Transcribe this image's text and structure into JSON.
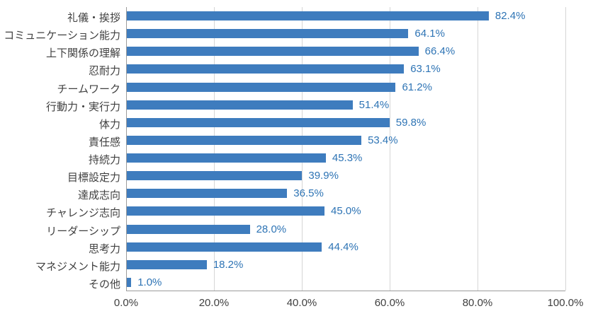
{
  "chart_data": {
    "type": "bar",
    "orientation": "horizontal",
    "title": "",
    "xlabel": "",
    "ylabel": "",
    "categories": [
      "礼儀・挨拶",
      "コミュニケーション能力",
      "上下関係の理解",
      "忍耐力",
      "チームワーク",
      "行動力・実行力",
      "体力",
      "責任感",
      "持続力",
      "目標設定力",
      "達成志向",
      "チャレンジ志向",
      "リーダーシップ",
      "思考力",
      "マネジメント能力",
      "その他"
    ],
    "values": [
      82.4,
      64.1,
      66.4,
      63.1,
      61.2,
      51.4,
      59.8,
      53.4,
      45.3,
      39.9,
      36.5,
      45.0,
      28.0,
      44.4,
      18.2,
      1.0
    ],
    "value_labels": [
      "82.4%",
      "64.1%",
      "66.4%",
      "63.1%",
      "61.2%",
      "51.4%",
      "59.8%",
      "53.4%",
      "45.3%",
      "39.9%",
      "36.5%",
      "45.0%",
      "28.0%",
      "44.4%",
      "18.2%",
      "1.0%"
    ],
    "xlim": [
      0,
      100
    ],
    "xtick_values": [
      0,
      20,
      40,
      60,
      80,
      100
    ],
    "xtick_labels": [
      "0.0%",
      "20.0%",
      "40.0%",
      "60.0%",
      "80.0%",
      "100.0%"
    ],
    "grid": true,
    "legend": false,
    "colors": {
      "bar": "#3e7cbe",
      "value_label": "#2e74b5",
      "category_label": "#404040",
      "tick_label": "#404040",
      "gridline": "#d6d6d6",
      "axis_line": "#9b9b9b",
      "background": "#ffffff"
    }
  }
}
